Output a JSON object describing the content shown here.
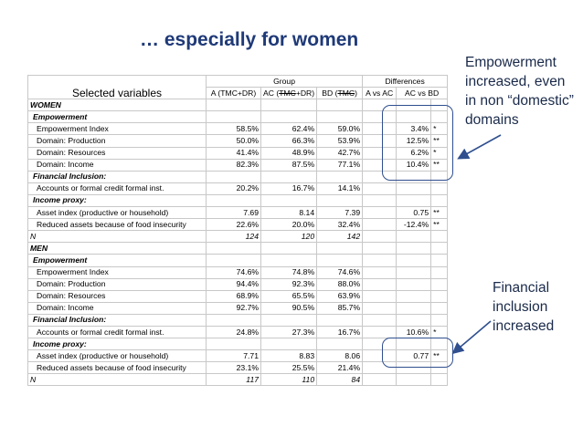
{
  "title": "… especially for women",
  "notes": {
    "empowerment_lines": [
      "Empowerment",
      "increased, even",
      "in non “domestic”",
      "domains"
    ],
    "financial_lines": [
      "Financial",
      "inclusion",
      "increased"
    ]
  },
  "table": {
    "var_header": "Selected variables",
    "group_header": "Group",
    "diff_header": "Differences",
    "col_a": "A (TMC+DR)",
    "col_ac_pre": "AC (",
    "col_ac_strike": "TMC",
    "col_ac_post": "+DR)",
    "col_bd_pre": "BD (",
    "col_bd_strike": "TMC",
    "col_bd_post": ")",
    "col_a_ac": "A vs AC",
    "col_ac_bd": "AC vs BD",
    "rows": [
      {
        "type": "section",
        "label": "WOMEN"
      },
      {
        "type": "sub",
        "label": "Empowerment"
      },
      {
        "type": "item",
        "label": "Empowerment Index",
        "a": "58.5%",
        "ac": "62.4%",
        "bd": "59.0%",
        "d1": "",
        "d2": "3.4%",
        "sig": "*"
      },
      {
        "type": "item",
        "label": "Domain: Production",
        "a": "50.0%",
        "ac": "66.3%",
        "bd": "53.9%",
        "d1": "",
        "d2": "12.5%",
        "sig": "**"
      },
      {
        "type": "item",
        "label": "Domain: Resources",
        "a": "41.4%",
        "ac": "48.9%",
        "bd": "42.7%",
        "d1": "",
        "d2": "6.2%",
        "sig": "*"
      },
      {
        "type": "item",
        "label": "Domain: Income",
        "a": "82.3%",
        "ac": "87.5%",
        "bd": "77.1%",
        "d1": "",
        "d2": "10.4%",
        "sig": "**"
      },
      {
        "type": "sub",
        "label": "Financial Inclusion:"
      },
      {
        "type": "item",
        "label": "Accounts  or formal credit formal inst.",
        "a": "20.2%",
        "ac": "16.7%",
        "bd": "14.1%",
        "d1": "",
        "d2": "",
        "sig": ""
      },
      {
        "type": "sub",
        "label": "Income proxy:"
      },
      {
        "type": "item",
        "label": "Asset index (productive or household)",
        "a": "7.69",
        "ac": "8.14",
        "bd": "7.39",
        "d1": "",
        "d2": "0.75",
        "sig": "**"
      },
      {
        "type": "item",
        "label": "Reduced assets because of food insecurity",
        "a": "22.6%",
        "ac": "20.0%",
        "bd": "32.4%",
        "d1": "",
        "d2": "-12.4%",
        "sig": "**"
      },
      {
        "type": "n",
        "label": "N",
        "a": "124",
        "ac": "120",
        "bd": "142",
        "d1": "",
        "d2": "",
        "sig": ""
      },
      {
        "type": "section",
        "label": "MEN"
      },
      {
        "type": "sub",
        "label": "Empowerment"
      },
      {
        "type": "item",
        "label": "Empowerment Index",
        "a": "74.6%",
        "ac": "74.8%",
        "bd": "74.6%",
        "d1": "",
        "d2": "",
        "sig": ""
      },
      {
        "type": "item",
        "label": "Domain: Production",
        "a": "94.4%",
        "ac": "92.3%",
        "bd": "88.0%",
        "d1": "",
        "d2": "",
        "sig": ""
      },
      {
        "type": "item",
        "label": "Domain: Resources",
        "a": "68.9%",
        "ac": "65.5%",
        "bd": "63.9%",
        "d1": "",
        "d2": "",
        "sig": ""
      },
      {
        "type": "item",
        "label": "Domain: Income",
        "a": "92.7%",
        "ac": "90.5%",
        "bd": "85.7%",
        "d1": "",
        "d2": "",
        "sig": ""
      },
      {
        "type": "sub",
        "label": "Financial Inclusion:"
      },
      {
        "type": "item",
        "label": "Accounts  or formal credit formal inst.",
        "a": "24.8%",
        "ac": "27.3%",
        "bd": "16.7%",
        "d1": "",
        "d2": "10.6%",
        "sig": "*"
      },
      {
        "type": "sub",
        "label": "Income proxy:"
      },
      {
        "type": "item",
        "label": "Asset index (productive or household)",
        "a": "7.71",
        "ac": "8.83",
        "bd": "8.06",
        "d1": "",
        "d2": "0.77",
        "sig": "**"
      },
      {
        "type": "item",
        "label": "Reduced assets because of food insecurity",
        "a": "23.1%",
        "ac": "25.5%",
        "bd": "21.4%",
        "d1": "",
        "d2": "",
        "sig": ""
      },
      {
        "type": "n",
        "label": "N",
        "a": "117",
        "ac": "110",
        "bd": "84",
        "d1": "",
        "d2": "",
        "sig": ""
      }
    ]
  },
  "colors": {
    "title": "#1f3a78",
    "highlight": "#2f4f8f"
  }
}
